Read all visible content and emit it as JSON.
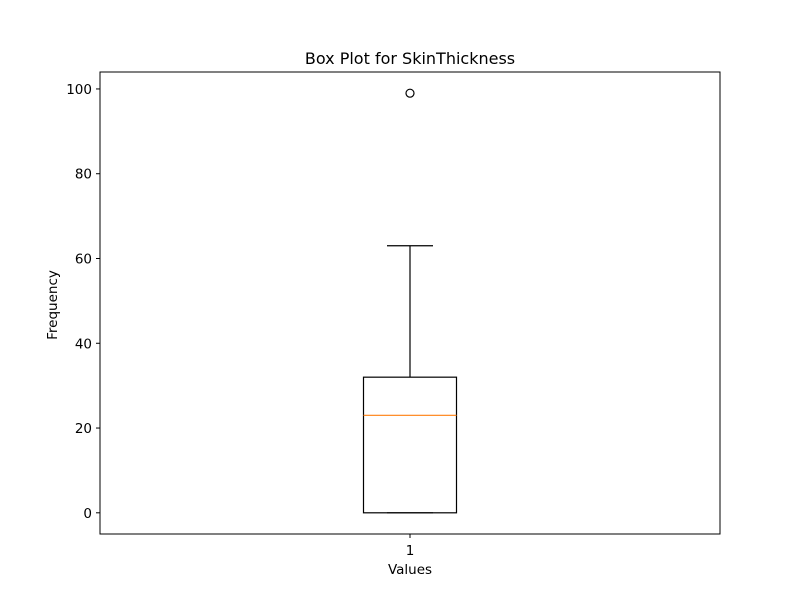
{
  "chart_data": {
    "type": "box",
    "title": "Box Plot for SkinThickness",
    "xlabel": "Values",
    "ylabel": "Frequency",
    "categories": [
      "1"
    ],
    "ylim": [
      -5,
      104
    ],
    "yticks": [
      0,
      20,
      40,
      60,
      80,
      100
    ],
    "boxes": [
      {
        "category": "1",
        "whisker_low": 0,
        "q1": 0,
        "median": 23,
        "q3": 32,
        "whisker_high": 63,
        "outliers": [
          99
        ]
      }
    ],
    "grid": false,
    "colors": {
      "box": "#000000",
      "median": "#ff7f0e",
      "outlier": "#000000",
      "background": "#ffffff"
    }
  }
}
